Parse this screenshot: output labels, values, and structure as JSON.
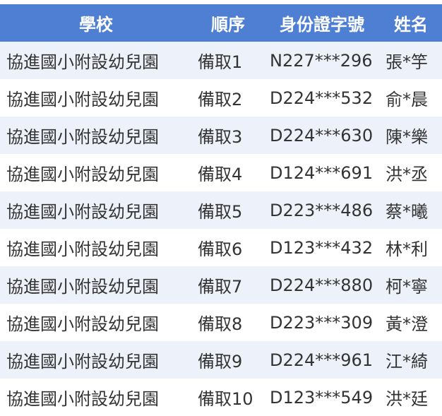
{
  "headers": [
    "學校",
    "順序",
    "身份證字號",
    "姓名"
  ],
  "colors": {
    "header_bg": "#4f7fd3",
    "row_alt": "#edf2fa"
  },
  "rows": [
    [
      "協進國小附設幼兒園",
      "備取1",
      "N227***296",
      "張*竽"
    ],
    [
      "協進國小附設幼兒園",
      "備取2",
      "D224***532",
      "俞*晨"
    ],
    [
      "協進國小附設幼兒園",
      "備取3",
      "D224***630",
      "陳*樂"
    ],
    [
      "協進國小附設幼兒園",
      "備取4",
      "D124***691",
      "洪*丞"
    ],
    [
      "協進國小附設幼兒園",
      "備取5",
      "D223***486",
      "蔡*曦"
    ],
    [
      "協進國小附設幼兒園",
      "備取6",
      "D123***432",
      "林*利"
    ],
    [
      "協進國小附設幼兒園",
      "備取7",
      "D224***880",
      "柯*寧"
    ],
    [
      "協進國小附設幼兒園",
      "備取8",
      "D223***309",
      "黃*澄"
    ],
    [
      "協進國小附設幼兒園",
      "備取9",
      "D224***961",
      "江*綺"
    ],
    [
      "協進國小附設幼兒園",
      "備取10",
      "D123***549",
      "洪*廷"
    ]
  ]
}
